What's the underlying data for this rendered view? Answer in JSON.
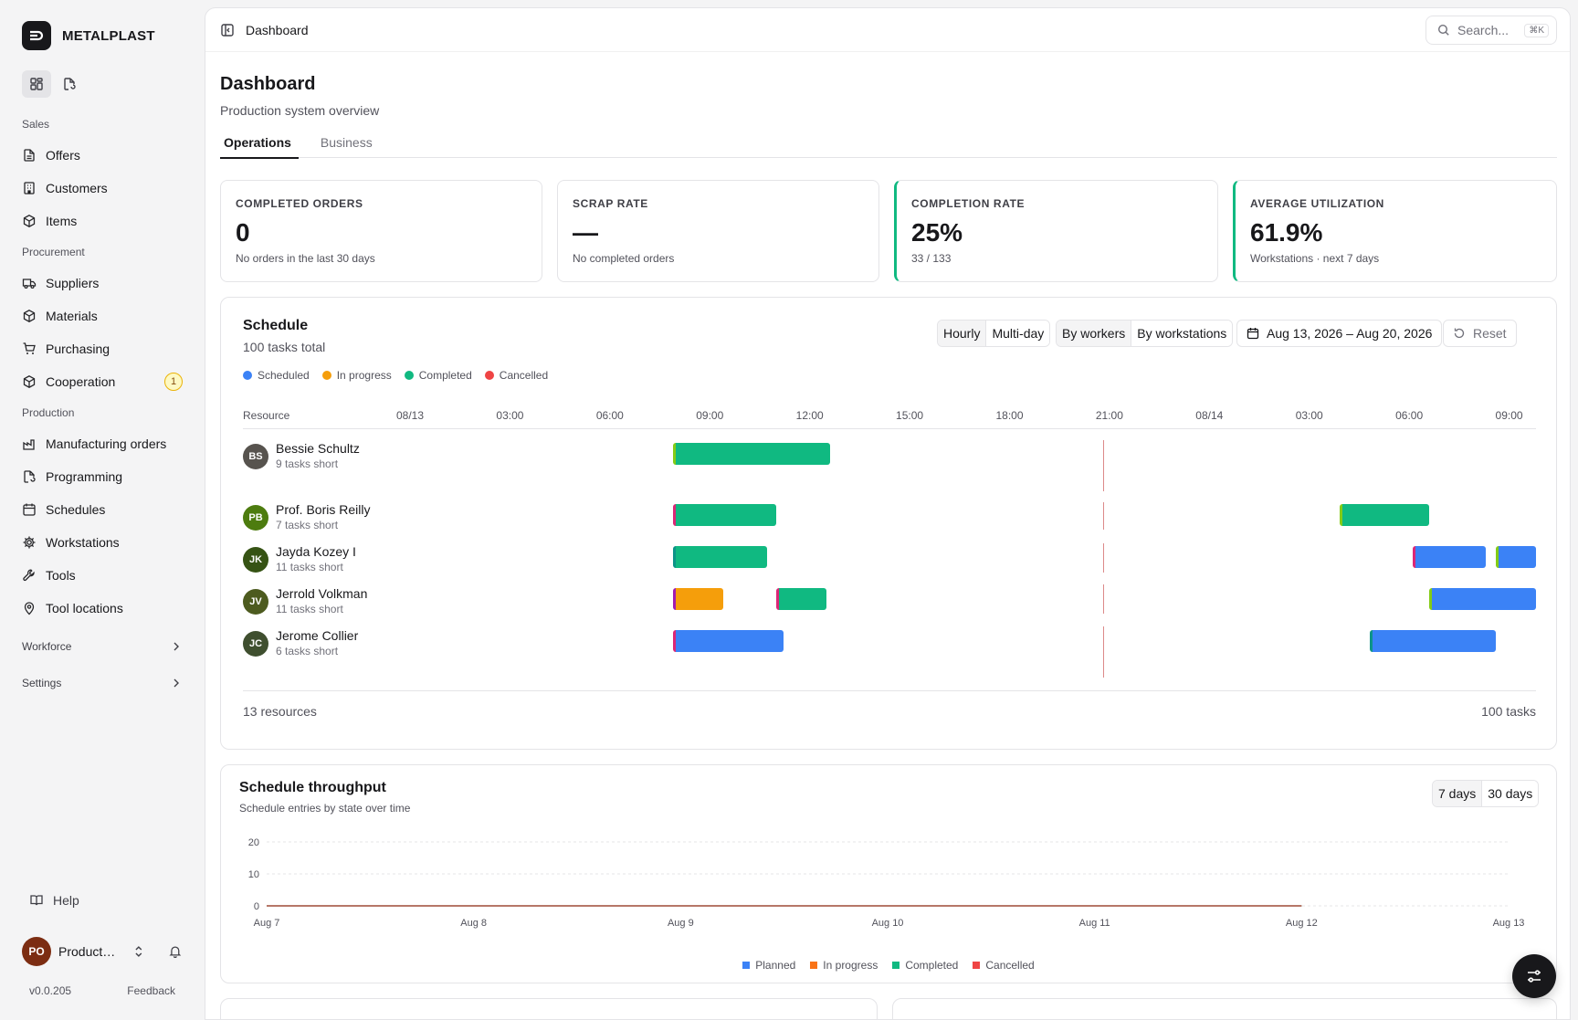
{
  "app": {
    "brand": "METALPLAST",
    "version": "v0.0.205",
    "feedback_label": "Feedback",
    "help_label": "Help",
    "user": {
      "initials": "PO",
      "name": "Production Operator",
      "avatar_color": "#7c2d12"
    }
  },
  "sidebar": {
    "sections": [
      {
        "label": "Sales",
        "items": [
          {
            "label": "Offers",
            "icon": "document-icon"
          },
          {
            "label": "Customers",
            "icon": "building-icon"
          },
          {
            "label": "Items",
            "icon": "box-icon"
          }
        ]
      },
      {
        "label": "Procurement",
        "items": [
          {
            "label": "Suppliers",
            "icon": "truck-icon"
          },
          {
            "label": "Materials",
            "icon": "box-icon"
          },
          {
            "label": "Purchasing",
            "icon": "cart-icon"
          },
          {
            "label": "Cooperation",
            "icon": "box-icon",
            "badge": "1"
          }
        ]
      },
      {
        "label": "Production",
        "items": [
          {
            "label": "Manufacturing orders",
            "icon": "factory-icon"
          },
          {
            "label": "Programming",
            "icon": "file-code-icon"
          },
          {
            "label": "Schedules",
            "icon": "calendar-icon"
          },
          {
            "label": "Workstations",
            "icon": "cog-icon"
          },
          {
            "label": "Tools",
            "icon": "wrench-icon"
          },
          {
            "label": "Tool locations",
            "icon": "pin-icon"
          }
        ]
      }
    ],
    "groups": [
      {
        "label": "Workforce"
      },
      {
        "label": "Settings"
      }
    ]
  },
  "header": {
    "breadcrumb": "Dashboard",
    "search_placeholder": "Search...",
    "search_shortcut": "⌘K"
  },
  "page": {
    "title": "Dashboard",
    "subtitle": "Production system overview",
    "tabs": [
      {
        "label": "Operations",
        "active": true
      },
      {
        "label": "Business",
        "active": false
      }
    ]
  },
  "kpis": [
    {
      "label": "COMPLETED ORDERS",
      "value": "0",
      "sub": "No orders in the last 30 days",
      "accent": false
    },
    {
      "label": "SCRAP RATE",
      "value": "—",
      "sub": "No completed orders",
      "accent": false
    },
    {
      "label": "COMPLETION RATE",
      "value": "25%",
      "sub": "33 / 133",
      "accent": true
    },
    {
      "label": "AVERAGE UTILIZATION",
      "value": "61.9%",
      "sub": "Workstations · next 7 days",
      "accent": true
    }
  ],
  "schedule": {
    "title": "Schedule",
    "subtitle": "100 tasks total",
    "legend": [
      {
        "label": "Scheduled",
        "color": "#3b82f6"
      },
      {
        "label": "In progress",
        "color": "#f59e0b"
      },
      {
        "label": "Completed",
        "color": "#10b981"
      },
      {
        "label": "Cancelled",
        "color": "#ef4444"
      }
    ],
    "view_modes": [
      {
        "label": "Hourly",
        "on": true
      },
      {
        "label": "Multi-day",
        "on": false
      }
    ],
    "group_modes": [
      {
        "label": "By workers",
        "on": true
      },
      {
        "label": "By workstations",
        "on": false
      }
    ],
    "date_range": "Aug 13, 2026 – Aug 20, 2026",
    "reset_label": "Reset",
    "resource_header": "Resource",
    "ticks": [
      "08/13",
      "03:00",
      "06:00",
      "09:00",
      "12:00",
      "15:00",
      "18:00",
      "21:00",
      "08/14",
      "03:00",
      "06:00",
      "09:00"
    ],
    "range_hours": [
      0,
      34
    ],
    "now_hour": 21,
    "colors": {
      "scheduled": "#3b82f6",
      "in_progress": "#f59e0b",
      "completed": "#10b981",
      "cancelled": "#ef4444"
    },
    "resources": [
      {
        "initials": "BS",
        "name": "Bessie Schultz",
        "sub": "9 tasks short",
        "avatar_color": "#57534e",
        "tasks": [
          {
            "start": 8.1,
            "end": 12.8,
            "state": "completed",
            "edge": "#84cc16"
          }
        ]
      },
      {
        "initials": "PB",
        "name": "Prof. Boris Reilly",
        "sub": "7 tasks short",
        "avatar_color": "#4d7c0f",
        "tasks": [
          {
            "start": 8.1,
            "end": 11.2,
            "state": "completed",
            "edge": "#db2777"
          },
          {
            "start": 28.1,
            "end": 30.8,
            "state": "completed",
            "edge": "#84cc16"
          }
        ]
      },
      {
        "initials": "JK",
        "name": "Jayda Kozey I",
        "sub": "11 tasks short",
        "avatar_color": "#365314",
        "tasks": [
          {
            "start": 8.1,
            "end": 10.9,
            "state": "completed",
            "edge": "#0d9488"
          },
          {
            "start": 30.3,
            "end": 32.5,
            "state": "scheduled",
            "edge": "#db2777"
          },
          {
            "start": 32.8,
            "end": 34.0,
            "state": "scheduled",
            "edge": "#84cc16"
          }
        ]
      },
      {
        "initials": "JV",
        "name": "Jerrold Volkman",
        "sub": "11 tasks short",
        "avatar_color": "#4d5b1f",
        "tasks": [
          {
            "start": 8.1,
            "end": 9.6,
            "state": "in_progress",
            "edge": "#a21caf"
          },
          {
            "start": 11.2,
            "end": 12.7,
            "state": "completed",
            "edge": "#db2777"
          },
          {
            "start": 30.8,
            "end": 34.0,
            "state": "scheduled",
            "edge": "#84cc16"
          }
        ]
      },
      {
        "initials": "JC",
        "name": "Jerome Collier",
        "sub": "6 tasks short",
        "avatar_color": "#3f4f2f",
        "tasks": [
          {
            "start": 8.1,
            "end": 11.4,
            "state": "scheduled",
            "edge": "#db2777"
          },
          {
            "start": 29.0,
            "end": 32.8,
            "state": "scheduled",
            "edge": "#0d9488"
          }
        ]
      }
    ],
    "footer_left": "13 resources",
    "footer_right": "100 tasks"
  },
  "throughput": {
    "title": "Schedule throughput",
    "subtitle": "Schedule entries by state over time",
    "ranges": [
      {
        "label": "7 days",
        "on": true
      },
      {
        "label": "30 days",
        "on": false
      }
    ]
  },
  "chart_data": {
    "type": "line",
    "x": [
      "Aug 7",
      "Aug 8",
      "Aug 9",
      "Aug 10",
      "Aug 11",
      "Aug 12",
      "Aug 13"
    ],
    "yticks": [
      0,
      10,
      20
    ],
    "ylim": [
      0,
      20
    ],
    "series": [
      {
        "name": "Planned",
        "color": "#3b82f6",
        "values": [
          0,
          0,
          0,
          0,
          0,
          0,
          null
        ]
      },
      {
        "name": "In progress",
        "color": "#f97316",
        "values": [
          0,
          0,
          0,
          0,
          0,
          0,
          null
        ]
      },
      {
        "name": "Completed",
        "color": "#10b981",
        "values": [
          0,
          0,
          0,
          0,
          0,
          0,
          null
        ]
      },
      {
        "name": "Cancelled",
        "color": "#ef4444",
        "values": [
          0,
          0,
          0,
          0,
          0,
          0,
          null
        ]
      }
    ],
    "grid": true,
    "legend": "bottom-center"
  }
}
